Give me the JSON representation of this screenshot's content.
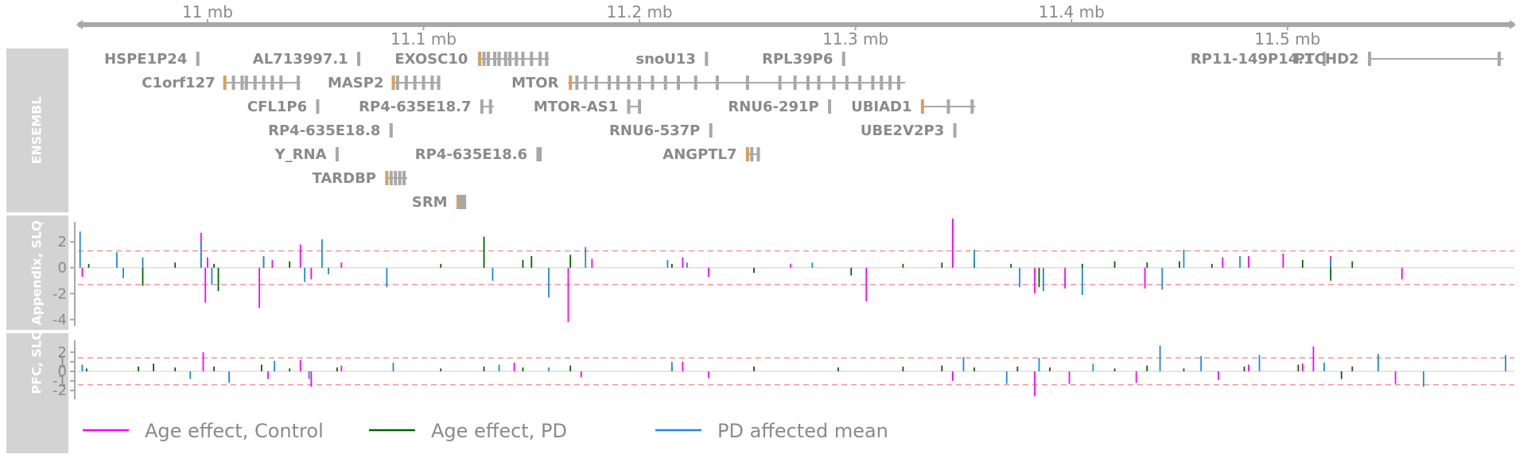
{
  "chart_data": {
    "type": "line",
    "title": "",
    "xlabel": "",
    "x_unit": "mb",
    "xlim": [
      10.94,
      11.605
    ],
    "axis_ticks_top": [
      {
        "pos": 11.0,
        "label": "11 mb"
      },
      {
        "pos": 11.2,
        "label": "11.2 mb"
      },
      {
        "pos": 11.4,
        "label": "11.4 mb"
      }
    ],
    "axis_ticks_bottom": [
      {
        "pos": 11.1,
        "label": "11.1 mb"
      },
      {
        "pos": 11.3,
        "label": "11.3 mb"
      },
      {
        "pos": 11.5,
        "label": "11.5 mb"
      }
    ],
    "gene_track": {
      "label": "ENSEMBL",
      "genes": [
        {
          "name": "HSPE1P24",
          "row": 0,
          "start": 10.995,
          "end": 10.996,
          "exons": [
            10.9955
          ]
        },
        {
          "name": "AL713997.1",
          "row": 0,
          "start": 11.0695,
          "end": 11.0705,
          "exons": [
            11.07
          ]
        },
        {
          "name": "EXOSC10",
          "row": 0,
          "start": 11.125,
          "end": 11.158,
          "exons": [
            11.126,
            11.128,
            11.13,
            11.133,
            11.135,
            11.138,
            11.14,
            11.143,
            11.146,
            11.15,
            11.154,
            11.157
          ]
        },
        {
          "name": "snoU13",
          "row": 0,
          "start": 11.2305,
          "end": 11.2315,
          "exons": [
            11.231
          ]
        },
        {
          "name": "RPL39P6",
          "row": 0,
          "start": 11.294,
          "end": 11.295,
          "exons": [
            11.2945
          ]
        },
        {
          "name": "RP11-149P14.1",
          "row": 0,
          "start": 11.5165,
          "end": 11.5175,
          "exons": [
            11.517
          ]
        },
        {
          "name": "PTCHD2",
          "row": 0,
          "start": 11.5375,
          "end": 11.6,
          "exons": [
            11.538,
            11.598
          ]
        },
        {
          "name": "C1orf127",
          "row": 1,
          "start": 11.008,
          "end": 11.043,
          "exons": [
            11.008,
            11.012,
            11.016,
            11.018,
            11.022,
            11.026,
            11.03,
            11.034,
            11.042
          ]
        },
        {
          "name": "MASP2",
          "row": 1,
          "start": 11.086,
          "end": 11.107,
          "exons": [
            11.086,
            11.088,
            11.092,
            11.096,
            11.1,
            11.104,
            11.107
          ]
        },
        {
          "name": "MTOR",
          "row": 1,
          "start": 11.167,
          "end": 11.323,
          "exons": [
            11.168,
            11.171,
            11.175,
            11.18,
            11.186,
            11.19,
            11.195,
            11.2,
            11.206,
            11.212,
            11.218,
            11.226,
            11.236,
            11.25,
            11.265,
            11.272,
            11.278,
            11.283,
            11.29,
            11.296,
            11.302,
            11.308,
            11.312,
            11.316,
            11.32
          ]
        },
        {
          "name": "CFL1P6",
          "row": 2,
          "start": 11.0505,
          "end": 11.0515,
          "exons": [
            11.051
          ]
        },
        {
          "name": "RP4-635E18.7",
          "row": 2,
          "start": 11.1265,
          "end": 11.1325,
          "exons": [
            11.127,
            11.131
          ]
        },
        {
          "name": "MTOR-AS1",
          "row": 2,
          "start": 11.1945,
          "end": 11.2005,
          "exons": [
            11.195,
            11.2
          ]
        },
        {
          "name": "RNU6-291P",
          "row": 2,
          "start": 11.2875,
          "end": 11.2885,
          "exons": [
            11.288
          ]
        },
        {
          "name": "UBIAD1",
          "row": 2,
          "start": 11.3305,
          "end": 11.3555,
          "exons": [
            11.331,
            11.343,
            11.354
          ]
        },
        {
          "name": "RP4-635E18.8",
          "row": 3,
          "start": 11.0845,
          "end": 11.0855,
          "exons": [
            11.085
          ]
        },
        {
          "name": "RNU6-537P",
          "row": 3,
          "start": 11.2325,
          "end": 11.2335,
          "exons": [
            11.233
          ]
        },
        {
          "name": "UBE2V2P3",
          "row": 3,
          "start": 11.3455,
          "end": 11.3465,
          "exons": [
            11.346
          ]
        },
        {
          "name": "Y_RNA",
          "row": 4,
          "start": 11.0595,
          "end": 11.0605,
          "exons": [
            11.06
          ]
        },
        {
          "name": "RP4-635E18.6",
          "row": 4,
          "start": 11.1525,
          "end": 11.1545,
          "exons": [
            11.153,
            11.154
          ]
        },
        {
          "name": "ANGPTL7",
          "row": 4,
          "start": 11.2495,
          "end": 11.2555,
          "exons": [
            11.25,
            11.252,
            11.255
          ]
        },
        {
          "name": "TARDBP",
          "row": 5,
          "start": 11.0825,
          "end": 11.0925,
          "exons": [
            11.083,
            11.085,
            11.087,
            11.089,
            11.091
          ]
        },
        {
          "name": "SRM",
          "row": 6,
          "start": 11.1155,
          "end": 11.1195,
          "exons": [
            11.116,
            11.117,
            11.118,
            11.119
          ]
        }
      ]
    },
    "panels": [
      {
        "label": "Appendix, SLQ",
        "ylim": [
          -4.5,
          3.3
        ],
        "yticks": [
          -4,
          -2,
          0,
          2
        ],
        "threshold_lines": [
          1.3,
          -1.3
        ],
        "series": [
          {
            "name": "Age effect, Control",
            "color": "#ff00ff",
            "x": [
              10.942,
              10.997,
              10.999,
              11.0,
              11.024,
              11.03,
              11.043,
              11.048,
              11.062,
              11.167,
              11.178,
              11.22,
              11.232,
              11.27,
              11.305,
              11.345,
              11.383,
              11.397,
              11.434,
              11.47,
              11.482,
              11.498,
              11.52,
              11.553
            ],
            "y": [
              -0.7,
              2.7,
              -2.7,
              0.8,
              -3.1,
              0.6,
              1.8,
              -0.9,
              0.4,
              -4.2,
              0.7,
              0.8,
              -0.7,
              0.3,
              -2.6,
              3.8,
              -2.0,
              -1.6,
              -1.6,
              0.8,
              0.9,
              1.1,
              0.9,
              -0.9
            ]
          },
          {
            "name": "Age effect, PD",
            "color": "#006400",
            "x": [
              10.945,
              10.97,
              10.985,
              11.003,
              11.005,
              11.026,
              11.038,
              11.108,
              11.128,
              11.146,
              11.15,
              11.168,
              11.215,
              11.253,
              11.298,
              11.322,
              11.34,
              11.355,
              11.372,
              11.385,
              11.405,
              11.42,
              11.435,
              11.45,
              11.465,
              11.507,
              11.52,
              11.53
            ],
            "y": [
              0.3,
              -1.4,
              0.4,
              0.3,
              -1.8,
              0.8,
              0.5,
              0.3,
              2.4,
              0.6,
              0.9,
              1.0,
              0.3,
              -0.4,
              -0.6,
              0.3,
              0.4,
              0.5,
              0.3,
              -1.5,
              0.3,
              0.5,
              0.4,
              0.5,
              0.3,
              0.6,
              -1.0,
              0.5
            ]
          },
          {
            "name": "PD affected mean",
            "color": "#1e88e5",
            "x": [
              10.941,
              10.958,
              10.961,
              10.97,
              10.997,
              11.002,
              11.026,
              11.045,
              11.053,
              11.056,
              11.083,
              11.132,
              11.158,
              11.175,
              11.213,
              11.222,
              11.28,
              11.355,
              11.376,
              11.387,
              11.405,
              11.442,
              11.452,
              11.478,
              11.52
            ],
            "y": [
              2.8,
              1.2,
              -0.8,
              0.8,
              2.1,
              -1.3,
              0.9,
              -1.1,
              2.2,
              -0.5,
              -1.5,
              -1.0,
              -2.3,
              1.6,
              0.6,
              0.4,
              0.4,
              1.4,
              -1.5,
              -1.8,
              -2.1,
              -1.7,
              1.4,
              0.9,
              0.7
            ]
          }
        ]
      },
      {
        "label": "PFC, SLQ",
        "ylim": [
          -2.9,
          2.9
        ],
        "yticks": [
          -2,
          -1,
          0,
          1,
          2
        ],
        "threshold_lines": [
          1.4,
          -1.4
        ],
        "series": [
          {
            "name": "Age effect, Control",
            "color": "#ff00ff",
            "x": [
              10.942,
              10.998,
              11.028,
              11.043,
              11.048,
              11.062,
              11.142,
              11.173,
              11.22,
              11.232,
              11.345,
              11.383,
              11.399,
              11.43,
              11.468,
              11.482,
              11.507,
              11.512,
              11.55
            ],
            "y": [
              0.5,
              2.0,
              -0.8,
              1.2,
              -1.6,
              0.6,
              0.9,
              -0.6,
              1.0,
              -0.7,
              -1.0,
              -2.6,
              -1.3,
              -1.2,
              -0.9,
              0.7,
              0.8,
              2.6,
              -1.3
            ]
          },
          {
            "name": "Age effect, PD",
            "color": "#006400",
            "x": [
              10.944,
              10.968,
              10.975,
              10.985,
              11.003,
              11.025,
              11.038,
              11.06,
              11.108,
              11.128,
              11.146,
              11.168,
              11.215,
              11.253,
              11.292,
              11.322,
              11.34,
              11.355,
              11.375,
              11.39,
              11.42,
              11.435,
              11.452,
              11.48,
              11.505,
              11.525,
              11.53
            ],
            "y": [
              0.3,
              0.5,
              0.8,
              0.4,
              0.5,
              0.7,
              0.3,
              0.4,
              0.3,
              0.5,
              0.4,
              0.6,
              0.4,
              0.5,
              0.4,
              0.5,
              0.6,
              0.4,
              0.5,
              0.4,
              0.3,
              0.6,
              0.3,
              0.5,
              0.7,
              -0.8,
              0.5
            ]
          },
          {
            "name": "PD affected mean",
            "color": "#1e88e5",
            "x": [
              10.942,
              10.992,
              11.01,
              11.031,
              11.047,
              11.086,
              11.135,
              11.158,
              11.215,
              11.35,
              11.37,
              11.385,
              11.41,
              11.441,
              11.46,
              11.487,
              11.517,
              11.542,
              11.563,
              11.601
            ],
            "y": [
              0.7,
              -0.8,
              -1.2,
              1.1,
              -0.8,
              0.9,
              0.7,
              0.4,
              1.0,
              1.5,
              -1.3,
              1.4,
              0.8,
              2.7,
              1.6,
              1.7,
              0.9,
              1.8,
              -1.6,
              1.7
            ]
          }
        ]
      }
    ],
    "legend": {
      "placement": "bottom",
      "entries": [
        {
          "label": "Age effect, Control",
          "color": "#ff00ff"
        },
        {
          "label": "Age effect, PD",
          "color": "#006400"
        },
        {
          "label": "PD affected mean",
          "color": "#1e88e5"
        }
      ]
    }
  }
}
